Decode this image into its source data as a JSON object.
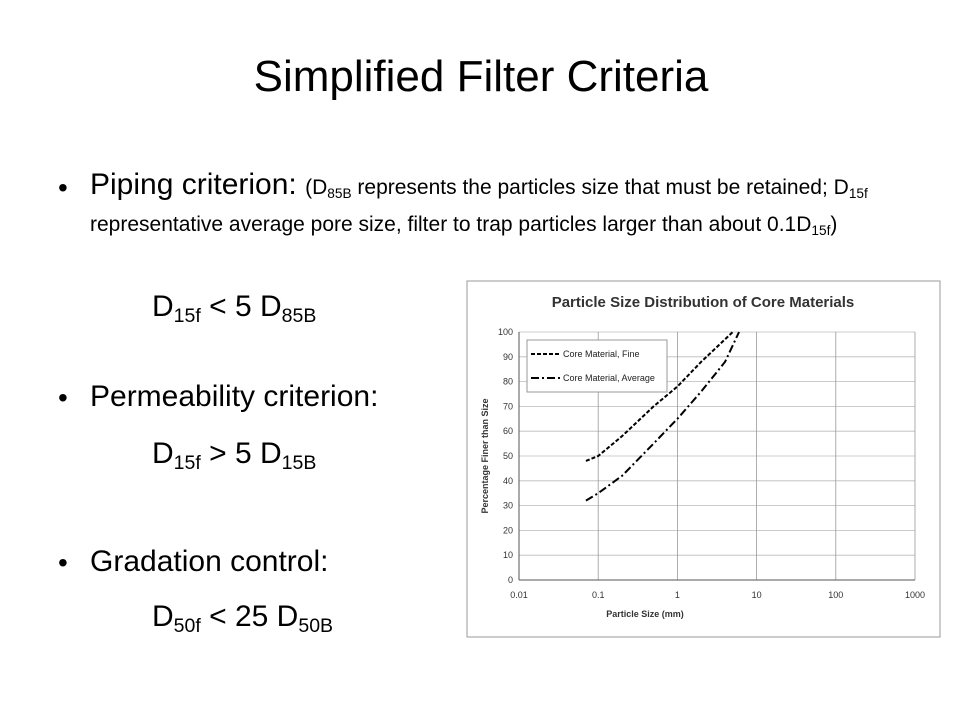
{
  "title": "Simplified Filter Criteria",
  "bullets": [
    {
      "heading": "Piping criterion:",
      "note": [
        "(D",
        "85B",
        " represents the particles size that must be retained; D",
        "15f",
        " representative average pore size, filter to trap particles larger than about 0.1D",
        "15f",
        ")"
      ],
      "formula": [
        "D",
        "15f",
        " < 5 D",
        "85B"
      ]
    },
    {
      "heading": "Permeability criterion:",
      "formula": [
        "D",
        "15f",
        " > 5 D",
        "15B"
      ]
    },
    {
      "heading": "Gradation control:",
      "formula": [
        "D",
        "50f",
        " < 25 D",
        "50B"
      ]
    }
  ],
  "chart": {
    "type": "line",
    "title": "Particle Size Distribution of Core Materials",
    "x_label": "Particle Size (mm)",
    "y_label": "Percentage Finer than Size",
    "xscale": "log",
    "xlim": [
      0.01,
      1000
    ],
    "xticks": [
      0.01,
      0.1,
      1,
      10,
      100,
      1000
    ],
    "ylim": [
      0,
      100
    ],
    "yticks": [
      0,
      10,
      20,
      30,
      40,
      50,
      60,
      70,
      80,
      90,
      100
    ],
    "grid": true,
    "legend": "upper left",
    "series": [
      {
        "name": "Core Material, Fine",
        "color": "#000000",
        "dash": "4,2",
        "x": [
          0.07,
          0.1,
          0.2,
          0.5,
          1,
          2,
          5
        ],
        "values": [
          48,
          50,
          58,
          70,
          78,
          88,
          100
        ]
      },
      {
        "name": "Core Material, Average",
        "color": "#000000",
        "dash": "8,3,2,3",
        "x": [
          0.07,
          0.1,
          0.2,
          0.5,
          1,
          2,
          4,
          6
        ],
        "values": [
          32,
          35,
          42,
          55,
          65,
          76,
          88,
          100
        ]
      }
    ]
  }
}
